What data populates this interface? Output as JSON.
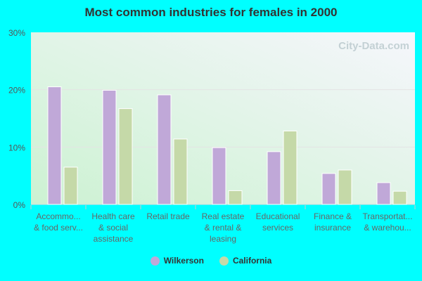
{
  "chart_data": {
    "type": "bar",
    "title": "Most common industries for females in 2000",
    "categories": [
      [
        "Accommo...",
        "& food serv..."
      ],
      [
        "Health care",
        "& social",
        "assistance"
      ],
      [
        "Retail trade"
      ],
      [
        "Real estate",
        "& rental &",
        "leasing"
      ],
      [
        "Educational",
        "services"
      ],
      [
        "Finance &",
        "insurance"
      ],
      [
        "Transportat...",
        "& warehou..."
      ]
    ],
    "series": [
      {
        "name": "Wilkerson",
        "color": "#c0a8d8",
        "values": [
          20.5,
          19.9,
          19.1,
          9.9,
          9.2,
          5.4,
          3.8
        ]
      },
      {
        "name": "California",
        "color": "#c5d9a8",
        "values": [
          6.5,
          16.7,
          11.4,
          2.4,
          12.8,
          6.0,
          2.3
        ]
      }
    ],
    "yticks": [
      "0%",
      "10%",
      "20%",
      "30%"
    ],
    "ylim": [
      0,
      30
    ],
    "grid": true,
    "legend": "bottom",
    "watermark": "City-Data.com"
  }
}
